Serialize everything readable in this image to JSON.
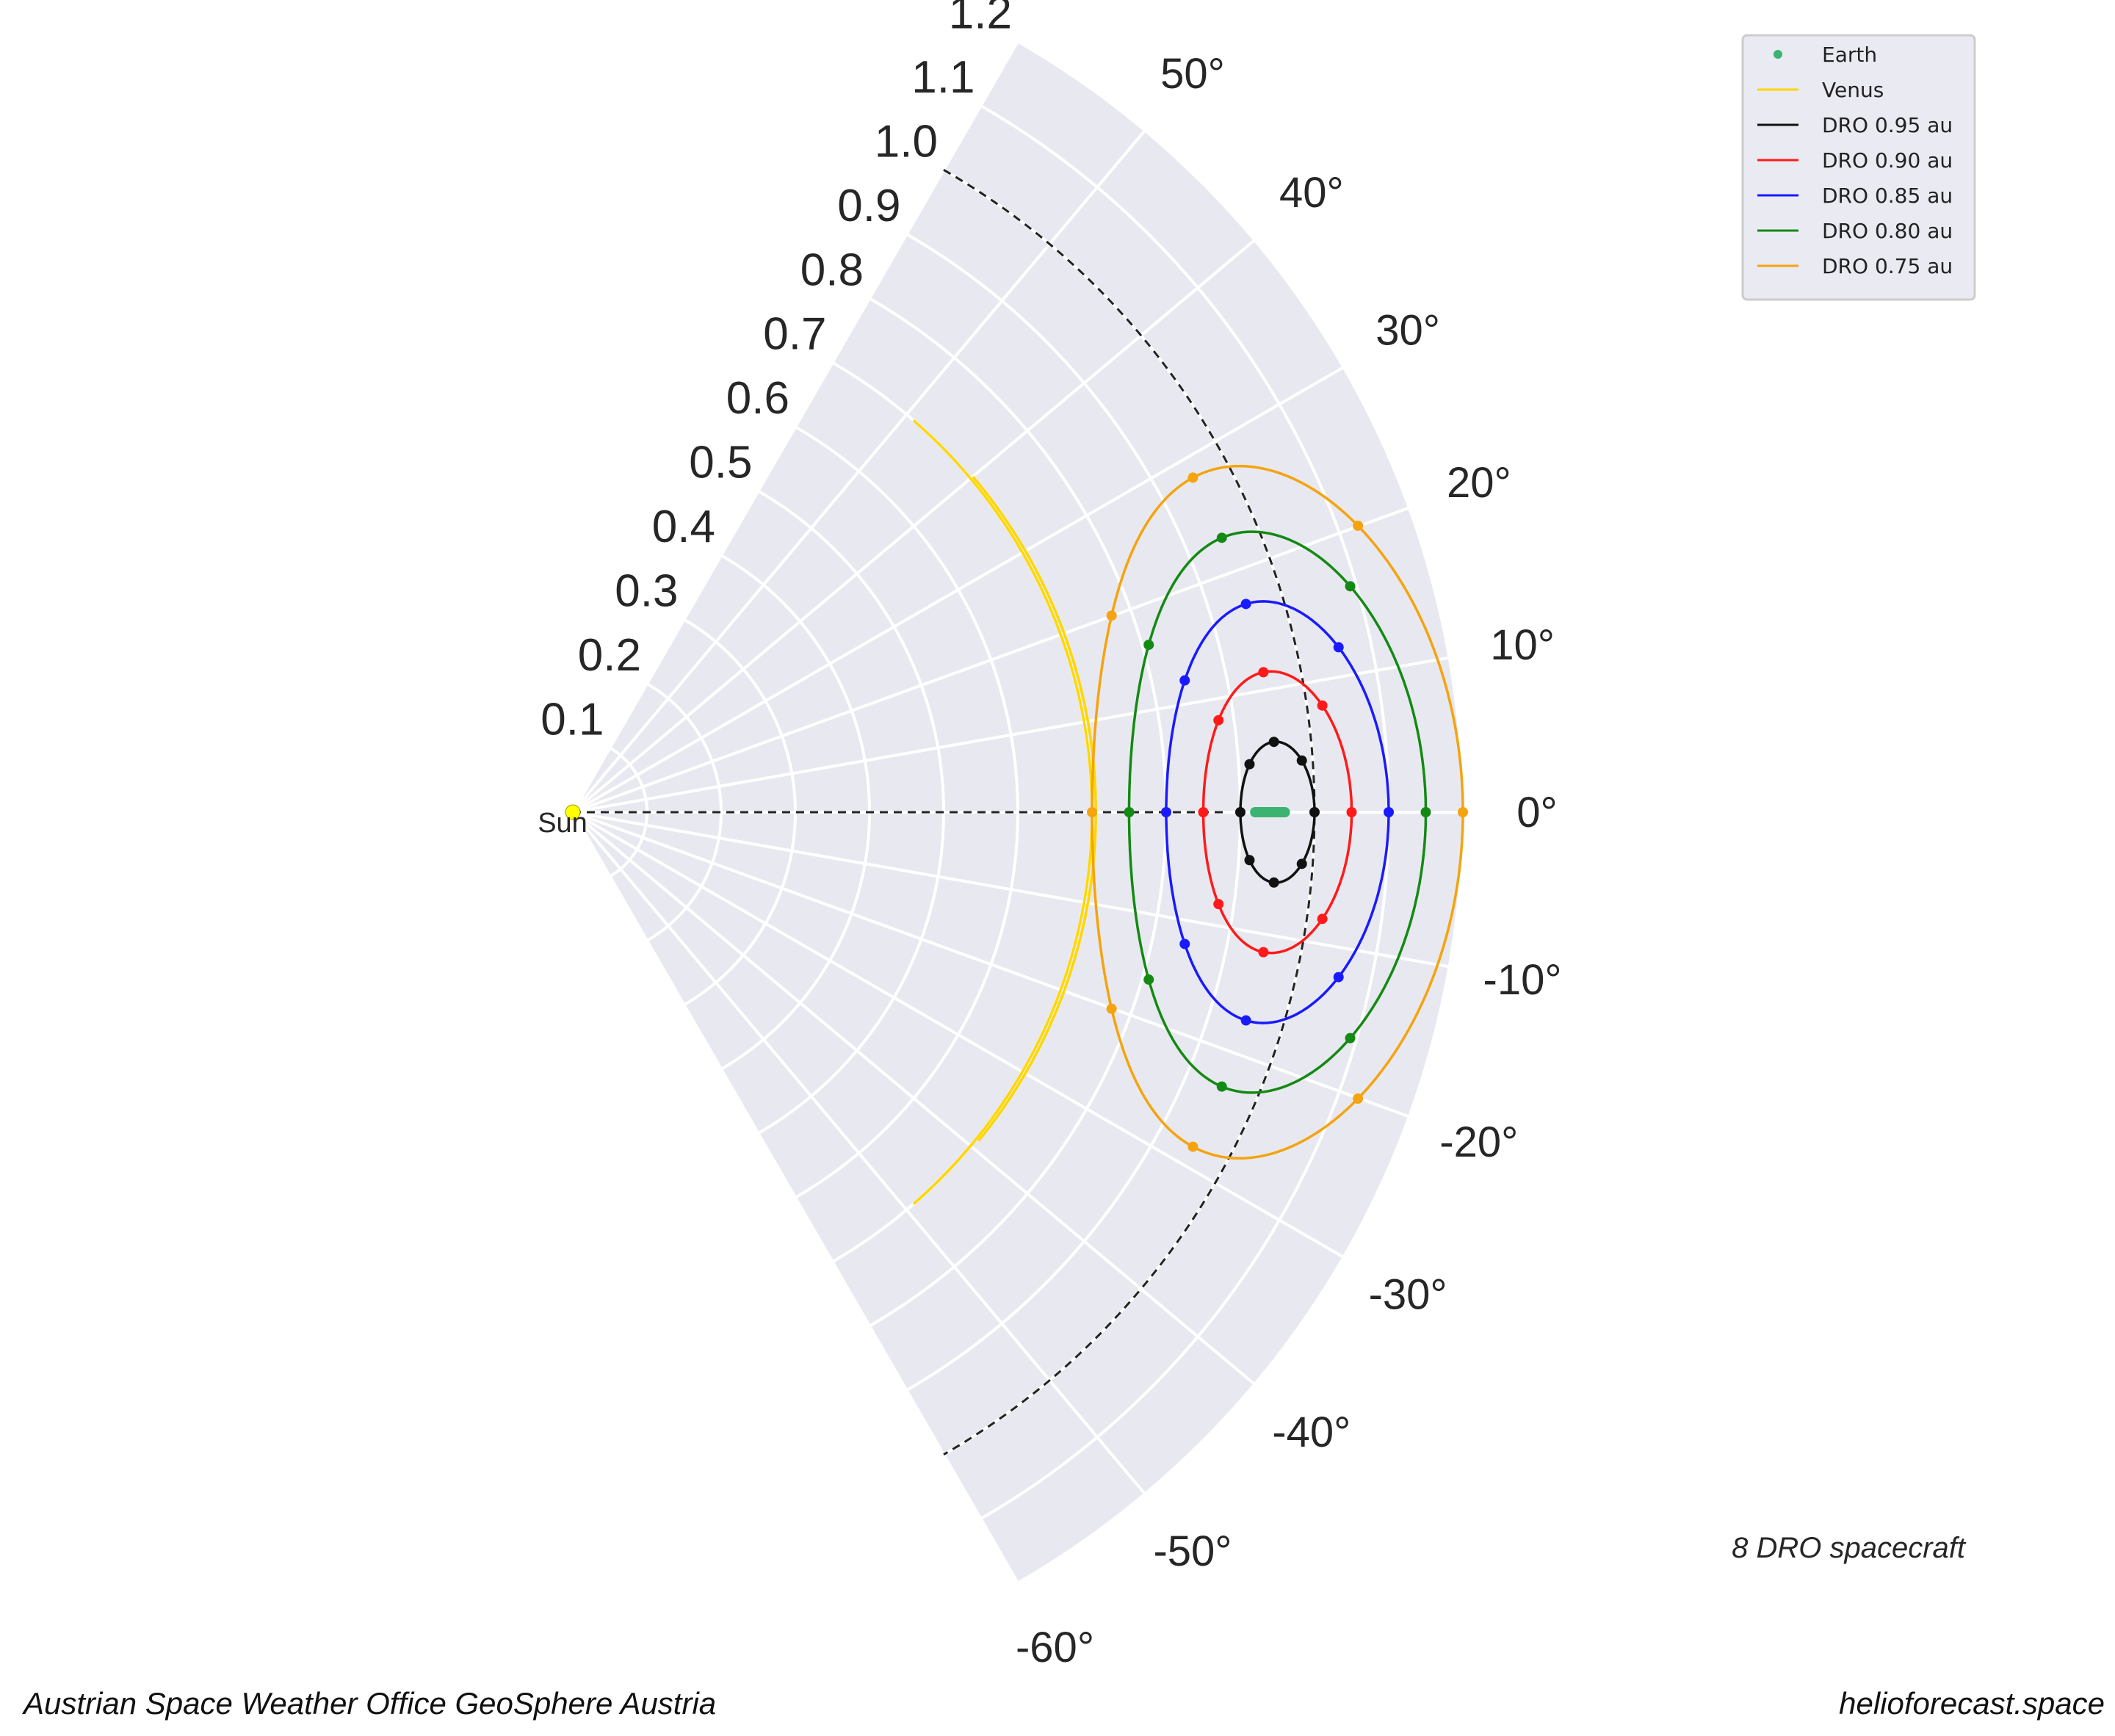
{
  "chart_data": {
    "type": "polar",
    "theta_range_deg": [
      -60,
      60
    ],
    "r_range": [
      0,
      1.2
    ],
    "r_ticks": [
      0.1,
      0.2,
      0.3,
      0.4,
      0.5,
      0.6,
      0.7,
      0.8,
      0.9,
      1.0,
      1.1,
      1.2
    ],
    "r_tick_labels": [
      "0.1",
      "0.2",
      "0.3",
      "0.4",
      "0.5",
      "0.6",
      "0.7",
      "0.8",
      "0.9",
      "1.0",
      "1.1",
      "1.2"
    ],
    "theta_ticks_deg": [
      -60,
      -50,
      -40,
      -30,
      -20,
      -10,
      0,
      10,
      20,
      30,
      40,
      50
    ],
    "theta_tick_labels": [
      "-60°",
      "-50°",
      "-40°",
      "-30°",
      "-20°",
      "-10°",
      "0°",
      "10°",
      "20°",
      "30°",
      "40°",
      "50°"
    ],
    "grid": true,
    "legend_placement": "top-right",
    "sun_label": "Sun",
    "earth": {
      "name": "Earth",
      "color": "#3cb371",
      "r": 0.94,
      "theta_deg": 0,
      "marker_halfwidth_r": 0.02
    },
    "earth_orbit_r": 1.0,
    "venus": {
      "name": "Venus",
      "color": "#ffd700",
      "arcs": [
        {
          "r": 0.7,
          "theta_from_deg": -49,
          "theta_to_deg": 49
        },
        {
          "r": 0.7,
          "theta_from_deg": -39,
          "theta_to_deg": 40
        }
      ]
    },
    "series": [
      {
        "name": "DRO 0.95 au",
        "color": "#111111",
        "center_r": 0.95,
        "center_theta_deg": 0,
        "half_width_r": 0.05,
        "half_height_au": 0.095
      },
      {
        "name": "DRO 0.90 au",
        "color": "#ff1a1a",
        "center_r": 0.95,
        "center_theta_deg": 0,
        "half_width_r": 0.1,
        "half_height_au": 0.19
      },
      {
        "name": "DRO 0.85 au",
        "color": "#1a1aff",
        "center_r": 0.95,
        "center_theta_deg": 0,
        "half_width_r": 0.15,
        "half_height_au": 0.285
      },
      {
        "name": "DRO 0.80 au",
        "color": "#138a13",
        "center_r": 0.95,
        "center_theta_deg": 0,
        "half_width_r": 0.2,
        "half_height_au": 0.38
      },
      {
        "name": "DRO 0.75 au",
        "color": "#f5a30f",
        "center_r": 0.95,
        "center_theta_deg": 0,
        "half_width_r": 0.25,
        "half_height_au": 0.47
      }
    ],
    "dro_points_per_orbit": 8,
    "annotation": "8 DRO spacecraft"
  },
  "footer": {
    "left": "Austrian Space Weather Office   GeoSphere Austria",
    "right": "helioforecast.space"
  },
  "colors": {
    "plot_background": "#e8e9f0",
    "grid": "#ffffff",
    "sun": "#ffff00",
    "dashed": "#222222"
  }
}
